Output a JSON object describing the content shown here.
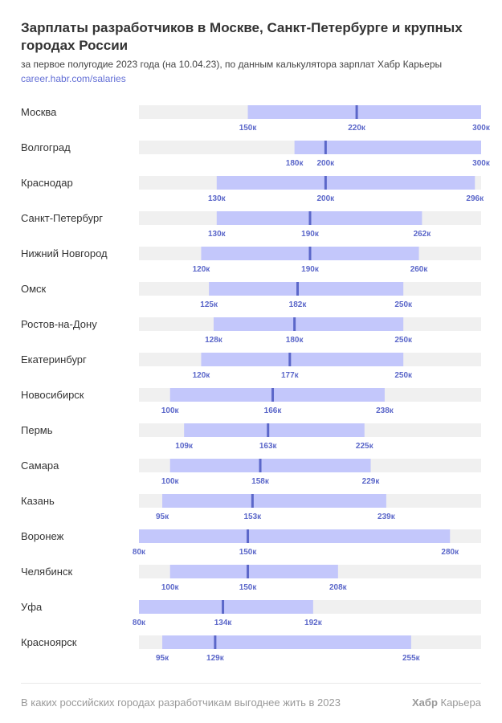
{
  "chart_data": {
    "type": "range-bar",
    "title": "Зарплаты разработчиков в Москве, Санкт-Петербурге и крупных городах России",
    "subtitle": "за первое полугодие 2023 года (на 10.04.23), по данным калькулятора зарплат Хабр Карьеры",
    "source_link": "career.habr.com/salaries",
    "xlim": [
      80,
      300
    ],
    "unit_suffix": "к",
    "colors": {
      "track": "#f0f0f0",
      "range": "#c3c7fb",
      "median": "#5b67c9",
      "label": "#5b67c9"
    },
    "series": [
      {
        "city": "Москва",
        "min": 150,
        "median": 220,
        "max": 300
      },
      {
        "city": "Волгоград",
        "min": 180,
        "median": 200,
        "max": 300
      },
      {
        "city": "Краснодар",
        "min": 130,
        "median": 200,
        "max": 296
      },
      {
        "city": "Санкт-Петербург",
        "min": 130,
        "median": 190,
        "max": 262
      },
      {
        "city": "Нижний Новгород",
        "min": 120,
        "median": 190,
        "max": 260
      },
      {
        "city": "Омск",
        "min": 125,
        "median": 182,
        "max": 250
      },
      {
        "city": "Ростов-на-Дону",
        "min": 128,
        "median": 180,
        "max": 250
      },
      {
        "city": "Екатеринбург",
        "min": 120,
        "median": 177,
        "max": 250
      },
      {
        "city": "Новосибирск",
        "min": 100,
        "median": 166,
        "max": 238
      },
      {
        "city": "Пермь",
        "min": 109,
        "median": 163,
        "max": 225
      },
      {
        "city": "Самара",
        "min": 100,
        "median": 158,
        "max": 229
      },
      {
        "city": "Казань",
        "min": 95,
        "median": 153,
        "max": 239
      },
      {
        "city": "Воронеж",
        "min": 80,
        "median": 150,
        "max": 280
      },
      {
        "city": "Челябинск",
        "min": 100,
        "median": 150,
        "max": 208
      },
      {
        "city": "Уфа",
        "min": 80,
        "median": 134,
        "max": 192
      },
      {
        "city": "Красноярск",
        "min": 95,
        "median": 129,
        "max": 255
      }
    ]
  },
  "footer": {
    "caption": "В каких российских городах разработчикам выгоднее жить в 2023",
    "brand_bold": "Хабр",
    "brand_rest": " Карьера"
  }
}
